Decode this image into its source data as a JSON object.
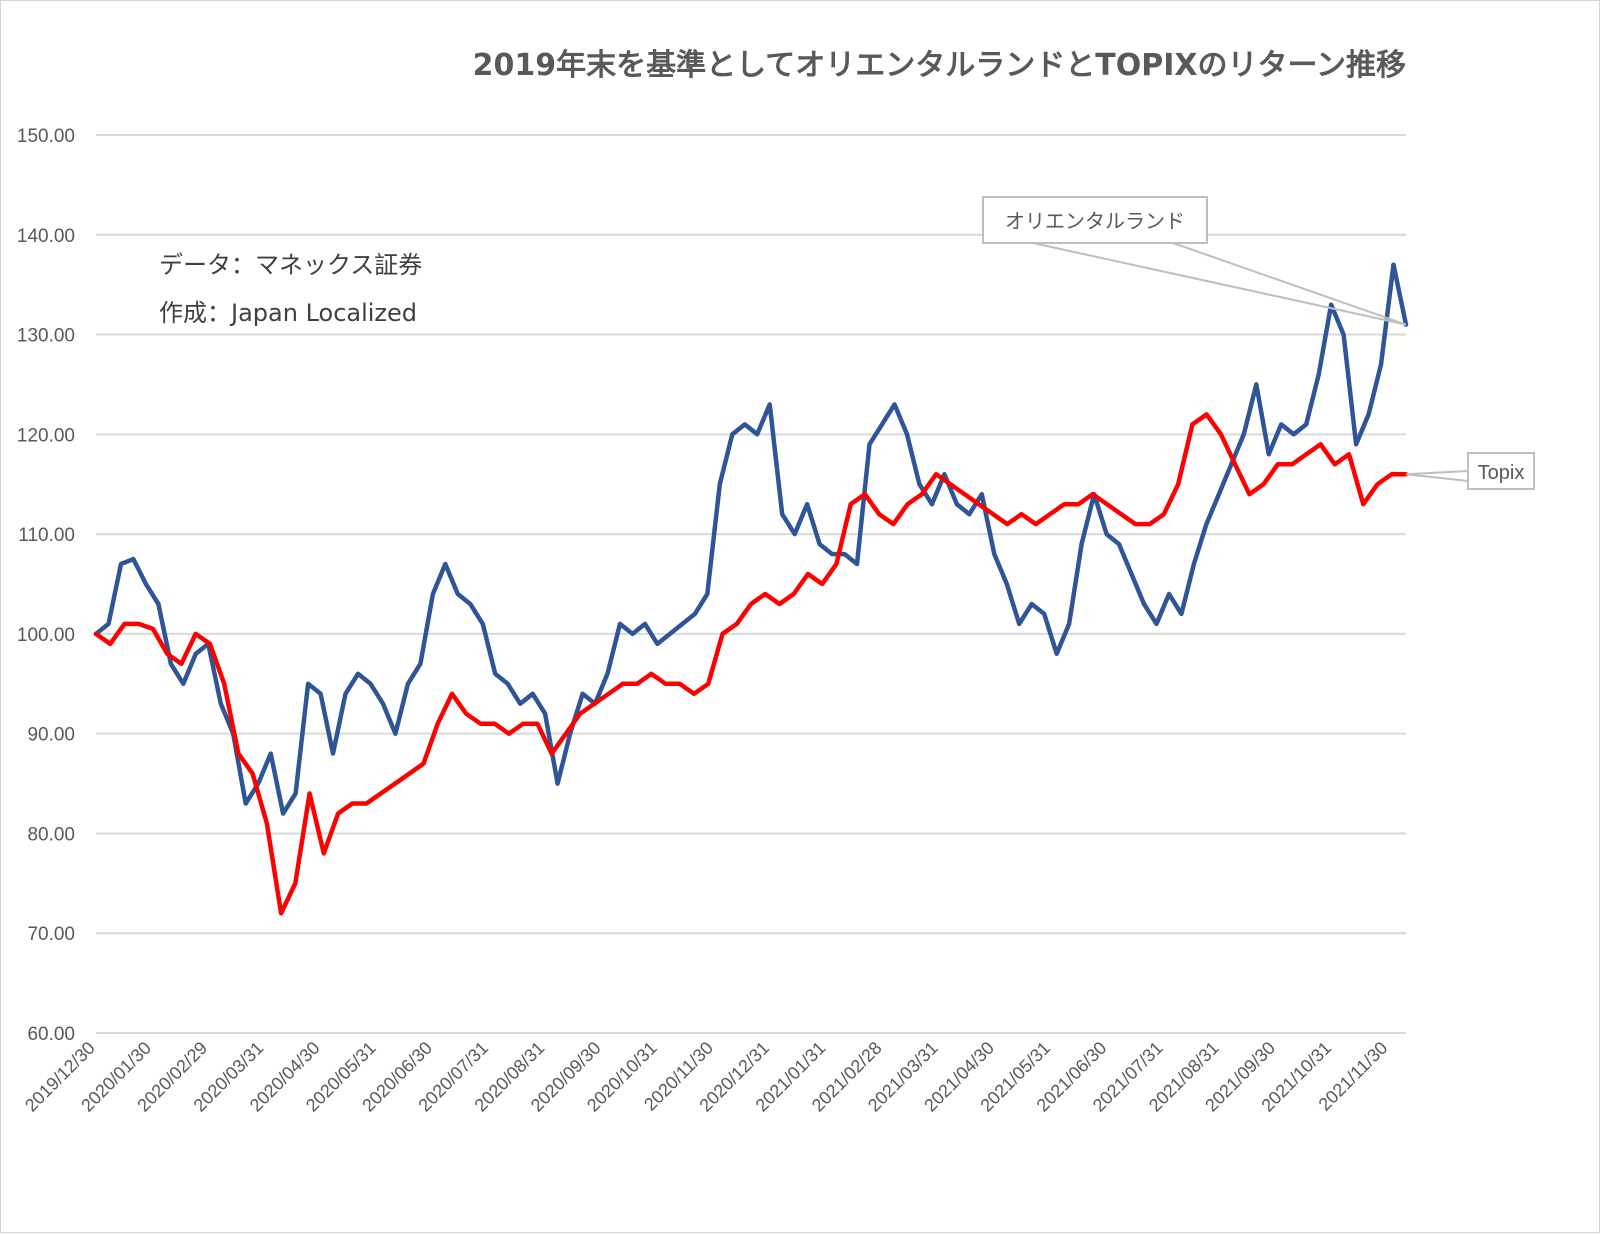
{
  "chart_data": {
    "type": "line",
    "title": "2019年末を基準としてオリエンタルランドとTOPIXのリターン推移",
    "notes": [
      "データ：マネックス証券",
      "作成：Japan Localized"
    ],
    "ylim": [
      60,
      150
    ],
    "y_ticks": [
      "150.00",
      "140.00",
      "130.00",
      "120.00",
      "110.00",
      "100.00",
      "90.00",
      "80.00",
      "70.00",
      "60.00"
    ],
    "x_ticks": [
      "2019/12/30",
      "2020/01/30",
      "2020/02/29",
      "2020/03/31",
      "2020/04/30",
      "2020/05/31",
      "2020/06/30",
      "2020/07/31",
      "2020/08/31",
      "2020/09/30",
      "2020/10/31",
      "2020/11/30",
      "2020/12/31",
      "2021/01/31",
      "2021/02/28",
      "2021/03/31",
      "2021/04/30",
      "2021/05/31",
      "2021/06/30",
      "2021/07/31",
      "2021/08/31",
      "2021/09/30",
      "2021/10/31",
      "2021/11/30"
    ],
    "grid": true,
    "legend": "callout labels",
    "series": [
      {
        "name": "オリエンタルランド",
        "color": "#2f5597",
        "values": [
          100,
          101,
          107,
          107.5,
          105,
          103,
          97,
          95,
          98,
          99,
          93,
          90,
          83,
          85,
          88,
          82,
          84,
          95,
          94,
          88,
          94,
          96,
          95,
          93,
          90,
          95,
          97,
          104,
          107,
          104,
          103,
          101,
          96,
          95,
          93,
          94,
          92,
          85,
          90,
          94,
          93,
          96,
          101,
          100,
          101,
          99,
          100,
          101,
          102,
          104,
          115,
          120,
          121,
          120,
          123,
          112,
          110,
          113,
          109,
          108,
          108,
          107,
          119,
          121,
          123,
          120,
          115,
          113,
          116,
          113,
          112,
          114,
          108,
          105,
          101,
          103,
          102,
          98,
          101,
          109,
          114,
          110,
          109,
          106,
          103,
          101,
          104,
          102,
          107,
          111,
          114,
          117,
          120,
          125,
          118,
          121,
          120,
          121,
          126,
          133,
          130,
          119,
          122,
          127,
          137,
          131
        ]
      },
      {
        "name": "Topix",
        "color": "#ff0000",
        "values": [
          100,
          99,
          101,
          101,
          100.5,
          98,
          97,
          100,
          99,
          95,
          88,
          86,
          81,
          72,
          75,
          84,
          78,
          82,
          83,
          83,
          84,
          85,
          86,
          87,
          91,
          94,
          92,
          91,
          91,
          90,
          91,
          91,
          88,
          90,
          92,
          93,
          94,
          95,
          95,
          96,
          95,
          95,
          94,
          95,
          100,
          101,
          103,
          104,
          103,
          104,
          106,
          105,
          107,
          113,
          114,
          112,
          111,
          113,
          114,
          116,
          115,
          114,
          113,
          112,
          111,
          112,
          111,
          112,
          113,
          113,
          114,
          113,
          112,
          111,
          111,
          112,
          115,
          121,
          122,
          120,
          117,
          114,
          115,
          117,
          117,
          118,
          119,
          117,
          118,
          113,
          115,
          116,
          116
        ]
      }
    ],
    "callouts": [
      {
        "label": "オリエンタルランド",
        "series": "オリエンタルランド"
      },
      {
        "label": "Topix",
        "series": "Topix"
      }
    ]
  }
}
